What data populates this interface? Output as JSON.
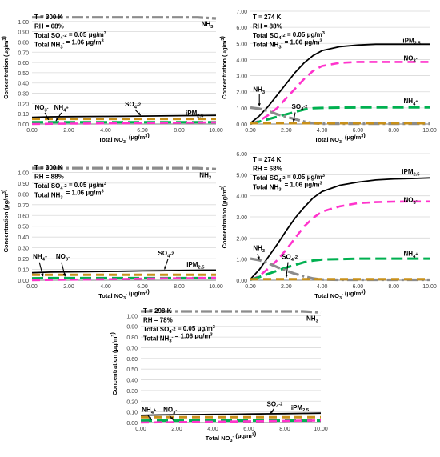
{
  "style": {
    "colors": {
      "NH3": "#8c8c8c",
      "iPM25": "#000000",
      "NO3": "#ff33cc",
      "NH4": "#00b050",
      "SO4": "#c8901a",
      "grid": "#d9d9d9",
      "axis": "#808080",
      "text": "#000000"
    }
  },
  "chart_data": [
    {
      "type": "line",
      "panel": "top-left",
      "annotations": [
        "T = 300 K",
        "RH = 68%",
        "Total SO4-2 = 0.05 μg/m3",
        "Total NH3- = 1.06 μg/m3"
      ],
      "xlabel": "Total NO3- (μg/m3)",
      "ylabel": "Concentration (μg/m3)",
      "xlim": [
        0,
        10
      ],
      "ylim": [
        0,
        1.1
      ],
      "xticks": [
        "0.00",
        "2.00",
        "4.00",
        "6.00",
        "8.00",
        "10.00"
      ],
      "yticks": [
        "0.00",
        "0.10",
        "0.20",
        "0.30",
        "0.40",
        "0.50",
        "0.60",
        "0.70",
        "0.80",
        "0.90",
        "1.00"
      ],
      "grid": true,
      "legend": "none",
      "x": [
        0,
        1,
        2,
        3,
        4,
        5,
        6,
        7,
        8,
        9,
        10
      ],
      "series": [
        {
          "name": "NH3",
          "values": [
            1.04,
            1.04,
            1.04,
            1.04,
            1.04,
            1.04,
            1.04,
            1.04,
            1.04,
            1.04,
            1.03
          ]
        },
        {
          "name": "iPM2.5",
          "values": [
            0.065,
            0.07,
            0.072,
            0.073,
            0.074,
            0.075,
            0.077,
            0.079,
            0.081,
            0.083,
            0.084
          ]
        },
        {
          "name": "SO4-2",
          "values": [
            0.05,
            0.05,
            0.05,
            0.05,
            0.05,
            0.05,
            0.05,
            0.05,
            0.05,
            0.05,
            0.05
          ]
        },
        {
          "name": "NH4+",
          "values": [
            0.017,
            0.018,
            0.018,
            0.018,
            0.018,
            0.018,
            0.018,
            0.018,
            0.018,
            0.018,
            0.018
          ]
        },
        {
          "name": "NO3-",
          "values": [
            0,
            0.002,
            0.004,
            0.005,
            0.006,
            0.007,
            0.009,
            0.011,
            0.013,
            0.015,
            0.016
          ]
        }
      ],
      "labels": {
        "NH3": "NH3",
        "iPM": "iPM2.5",
        "SO4": "SO4-2",
        "NO3": "NO3-",
        "NH4": "NH4+"
      }
    },
    {
      "type": "line",
      "panel": "top-right",
      "annotations": [
        "T = 274 K",
        "RH = 88%",
        "Total SO4-2 = 0.05 μg/m3",
        "Total NH3- = 1.06 μg/m3"
      ],
      "xlabel": "Total NO3- (μg/m3)",
      "ylabel": "Concentration (μg/m3)",
      "xlim": [
        0,
        10
      ],
      "ylim": [
        0,
        7
      ],
      "xticks": [
        "0.00",
        "2.00",
        "4.00",
        "6.00",
        "8.00",
        "10.00"
      ],
      "yticks": [
        "0.00",
        "1.00",
        "2.00",
        "3.00",
        "4.00",
        "5.00",
        "6.00",
        "7.00"
      ],
      "grid": true,
      "legend": "none",
      "x": [
        0,
        0.5,
        1,
        1.5,
        2,
        2.5,
        3,
        3.5,
        4,
        5,
        6,
        7,
        8,
        9,
        10
      ],
      "series": [
        {
          "name": "iPM2.5",
          "values": [
            0.05,
            0.5,
            1.1,
            1.8,
            2.5,
            3.2,
            3.8,
            4.25,
            4.55,
            4.8,
            4.9,
            4.95,
            4.95,
            4.95,
            4.95
          ]
        },
        {
          "name": "NO3-",
          "values": [
            0,
            0.2,
            0.55,
            1.0,
            1.6,
            2.2,
            2.8,
            3.3,
            3.6,
            3.8,
            3.85,
            3.85,
            3.85,
            3.85,
            3.85
          ]
        },
        {
          "name": "NH4+",
          "values": [
            0.02,
            0.15,
            0.3,
            0.45,
            0.6,
            0.75,
            0.9,
            0.98,
            1.0,
            1.02,
            1.03,
            1.03,
            1.03,
            1.03,
            1.03
          ]
        },
        {
          "name": "NH3",
          "values": [
            1.02,
            0.95,
            0.8,
            0.6,
            0.45,
            0.3,
            0.15,
            0.05,
            0.02,
            0.02,
            0.02,
            0.02,
            0.02,
            0.02,
            0.02
          ]
        },
        {
          "name": "SO4-2",
          "values": [
            0.05,
            0.05,
            0.05,
            0.05,
            0.05,
            0.05,
            0.05,
            0.05,
            0.05,
            0.05,
            0.05,
            0.05,
            0.05,
            0.05,
            0.05
          ]
        }
      ],
      "labels": {
        "iPM": "iPM2.5",
        "NO3": "NO3-",
        "NH4": "NH4+",
        "NH3": "NH3",
        "SO4": "SO4-2"
      }
    },
    {
      "type": "line",
      "panel": "middle-left",
      "annotations": [
        "T = 300 K",
        "RH = 88%",
        "Total SO4-2 = 0.05 μg/m3",
        "Total NH3- = 1.06 μg/m3"
      ],
      "xlabel": "Total NO3- (μg/m3)",
      "ylabel": "Concentration (μg/m3)",
      "xlim": [
        0,
        10
      ],
      "ylim": [
        0,
        1.1
      ],
      "xticks": [
        "0.00",
        "2.00",
        "4.00",
        "6.00",
        "8.00",
        "10.00"
      ],
      "yticks": [
        "0.00",
        "0.10",
        "0.20",
        "0.30",
        "0.40",
        "0.50",
        "0.60",
        "0.70",
        "0.80",
        "0.90",
        "1.00"
      ],
      "grid": true,
      "legend": "none",
      "x": [
        0,
        1,
        2,
        3,
        4,
        5,
        6,
        7,
        8,
        9,
        10
      ],
      "series": [
        {
          "name": "NH3",
          "values": [
            1.04,
            1.04,
            1.04,
            1.04,
            1.04,
            1.04,
            1.04,
            1.04,
            1.04,
            1.04,
            1.03
          ]
        },
        {
          "name": "iPM2.5",
          "values": [
            0.07,
            0.075,
            0.077,
            0.079,
            0.081,
            0.083,
            0.086,
            0.088,
            0.09,
            0.092,
            0.093
          ]
        },
        {
          "name": "SO4-2",
          "values": [
            0.05,
            0.05,
            0.05,
            0.05,
            0.05,
            0.05,
            0.05,
            0.05,
            0.05,
            0.05,
            0.05
          ]
        },
        {
          "name": "NH4+",
          "values": [
            0.018,
            0.019,
            0.019,
            0.019,
            0.019,
            0.019,
            0.019,
            0.019,
            0.019,
            0.019,
            0.019
          ]
        },
        {
          "name": "NO3-",
          "values": [
            0,
            0.003,
            0.005,
            0.007,
            0.009,
            0.011,
            0.014,
            0.016,
            0.018,
            0.02,
            0.022
          ]
        }
      ],
      "labels": {
        "NH3": "NH3",
        "iPM": "iPM2.5",
        "SO4": "SO4-2",
        "NO3": "NO3-",
        "NH4": "NH4+"
      }
    },
    {
      "type": "line",
      "panel": "middle-right",
      "annotations": [
        "T = 274 K",
        "RH = 68%",
        "Total SO4-2 = 0.05 μg/m3",
        "Total NH3- = 1.06 μg/m3"
      ],
      "xlabel": "Total NO3- (μg/m3)",
      "ylabel": "Concentration (μg/m3)",
      "xlim": [
        0,
        10
      ],
      "ylim": [
        0,
        6
      ],
      "xticks": [
        "0.00",
        "2.00",
        "4.00",
        "6.00",
        "8.00",
        "10.00"
      ],
      "yticks": [
        "0.00",
        "1.00",
        "2.00",
        "3.00",
        "4.00",
        "5.00",
        "6.00"
      ],
      "grid": true,
      "legend": "none",
      "x": [
        0,
        0.5,
        1,
        1.5,
        2,
        2.5,
        3,
        3.5,
        4,
        5,
        6,
        7,
        8,
        9,
        10
      ],
      "series": [
        {
          "name": "iPM2.5",
          "values": [
            0.05,
            0.5,
            1.1,
            1.7,
            2.35,
            2.95,
            3.45,
            3.9,
            4.2,
            4.5,
            4.65,
            4.75,
            4.8,
            4.82,
            4.85
          ]
        },
        {
          "name": "NO3-",
          "values": [
            0,
            0.2,
            0.55,
            0.95,
            1.45,
            2.0,
            2.55,
            2.95,
            3.25,
            3.5,
            3.65,
            3.7,
            3.72,
            3.73,
            3.73
          ]
        },
        {
          "name": "NH4+",
          "values": [
            0.02,
            0.15,
            0.3,
            0.45,
            0.6,
            0.72,
            0.85,
            0.93,
            0.98,
            1.0,
            1.02,
            1.02,
            1.02,
            1.02,
            1.02
          ]
        },
        {
          "name": "NH3",
          "values": [
            1.02,
            0.95,
            0.8,
            0.62,
            0.45,
            0.3,
            0.18,
            0.08,
            0.03,
            0.02,
            0.02,
            0.02,
            0.02,
            0.02,
            0.02
          ]
        },
        {
          "name": "SO4-2",
          "values": [
            0.05,
            0.05,
            0.05,
            0.05,
            0.05,
            0.05,
            0.05,
            0.05,
            0.05,
            0.05,
            0.05,
            0.05,
            0.05,
            0.05,
            0.05
          ]
        }
      ],
      "labels": {
        "iPM": "iPM2.5",
        "NO3": "NO3-",
        "NH4": "NH4+",
        "NH3": "NH3",
        "SO4": "SO4-2"
      }
    },
    {
      "type": "line",
      "panel": "bottom-center",
      "annotations": [
        "T = 298 K",
        "RH = 78%",
        "Total SO4-2 = 0.05 μg/m3",
        "Total NH3- = 1.06 μg/m3"
      ],
      "xlabel": "Total NO3- (μg/m3)",
      "ylabel": "Concentration (μg/m3)",
      "xlim": [
        0,
        10
      ],
      "ylim": [
        0,
        1.1
      ],
      "xticks": [
        "0.00",
        "2.00",
        "4.00",
        "6.00",
        "8.00",
        "10.00"
      ],
      "yticks": [
        "0.00",
        "0.10",
        "0.20",
        "0.30",
        "0.40",
        "0.50",
        "0.60",
        "0.70",
        "0.80",
        "0.90",
        "1.00"
      ],
      "grid": true,
      "legend": "none",
      "x": [
        0,
        1,
        2,
        3,
        4,
        5,
        6,
        7,
        8,
        9,
        10
      ],
      "series": [
        {
          "name": "NH3",
          "values": [
            1.04,
            1.04,
            1.04,
            1.04,
            1.04,
            1.04,
            1.04,
            1.04,
            1.04,
            1.04,
            1.03
          ]
        },
        {
          "name": "iPM2.5",
          "values": [
            0.068,
            0.072,
            0.074,
            0.075,
            0.076,
            0.078,
            0.08,
            0.082,
            0.084,
            0.086,
            0.088
          ]
        },
        {
          "name": "SO4-2",
          "values": [
            0.05,
            0.05,
            0.05,
            0.05,
            0.05,
            0.05,
            0.05,
            0.05,
            0.05,
            0.05,
            0.05
          ]
        },
        {
          "name": "NH4+",
          "values": [
            0.018,
            0.019,
            0.019,
            0.019,
            0.019,
            0.019,
            0.019,
            0.019,
            0.019,
            0.019,
            0.019
          ]
        },
        {
          "name": "NO3-",
          "values": [
            0,
            0.002,
            0.004,
            0.006,
            0.008,
            0.01,
            0.012,
            0.014,
            0.016,
            0.018,
            0.02
          ]
        }
      ],
      "labels": {
        "NH3": "NH3",
        "iPM": "iPM2.5",
        "SO4": "SO4-2",
        "NH4": "NH4+",
        "NO3": "NO3-"
      }
    }
  ]
}
